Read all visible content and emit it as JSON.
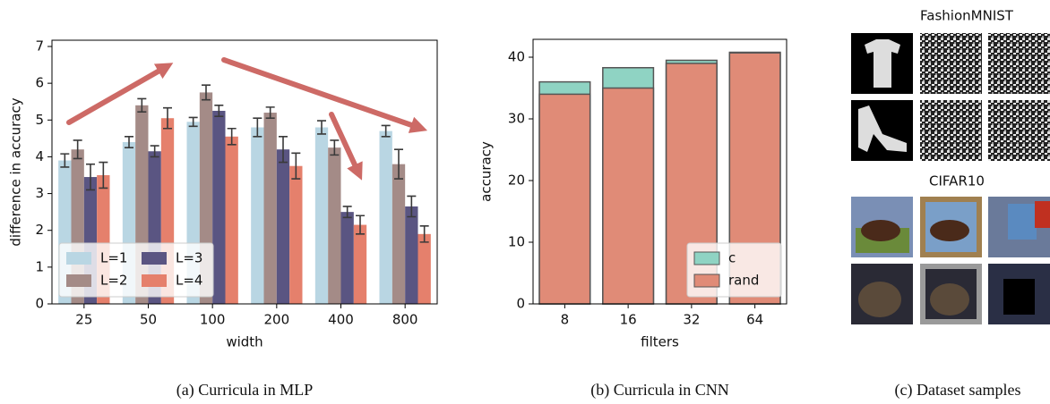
{
  "chart_data": [
    {
      "type": "bar",
      "barmode": "group",
      "caption": "(a) Curricula in MLP",
      "xlabel": "width",
      "ylabel": "difference in accuracy",
      "categories": [
        "25",
        "50",
        "100",
        "200",
        "400",
        "800"
      ],
      "series": [
        {
          "name": "L=1",
          "color": "#b9d6e3",
          "values": [
            3.9,
            4.4,
            4.95,
            4.8,
            4.8,
            4.7
          ],
          "errors": [
            0.18,
            0.15,
            0.12,
            0.25,
            0.18,
            0.15
          ]
        },
        {
          "name": "L=2",
          "color": "#a48b87",
          "values": [
            4.2,
            5.4,
            5.75,
            5.2,
            4.25,
            3.8
          ],
          "errors": [
            0.25,
            0.18,
            0.2,
            0.15,
            0.2,
            0.4
          ]
        },
        {
          "name": "L=3",
          "color": "#5a5582",
          "values": [
            3.45,
            4.15,
            5.25,
            4.2,
            2.5,
            2.65
          ],
          "errors": [
            0.35,
            0.15,
            0.15,
            0.35,
            0.15,
            0.28
          ]
        },
        {
          "name": "L=4",
          "color": "#e5806c",
          "values": [
            3.5,
            5.05,
            4.55,
            3.75,
            2.15,
            1.9
          ],
          "errors": [
            0.35,
            0.28,
            0.22,
            0.35,
            0.25,
            0.22
          ]
        }
      ],
      "ylim": [
        0,
        7.17
      ],
      "yticks": [
        0,
        1,
        2,
        3,
        4,
        5,
        6,
        7
      ],
      "legend": "lower left",
      "legend_columns": 2
    },
    {
      "type": "bar",
      "barmode": "overlay",
      "caption": "(b) Curricula in CNN",
      "xlabel": "filters",
      "ylabel": "accuracy",
      "categories": [
        "8",
        "16",
        "32",
        "64"
      ],
      "series": [
        {
          "name": "c",
          "color": "#8fd3c3",
          "values": [
            36,
            38.3,
            39.5,
            40.8
          ]
        },
        {
          "name": "rand",
          "color": "#e08b77",
          "values": [
            34,
            35,
            39,
            40.7
          ]
        }
      ],
      "ylim": [
        0,
        42.9
      ],
      "yticks": [
        0,
        10,
        20,
        30,
        40
      ],
      "legend": "lower right",
      "legend_columns": 1
    }
  ],
  "samples": {
    "caption": "(c) Dataset samples",
    "groups": [
      {
        "title": "FashionMNIST"
      },
      {
        "title": "CIFAR10"
      }
    ]
  }
}
